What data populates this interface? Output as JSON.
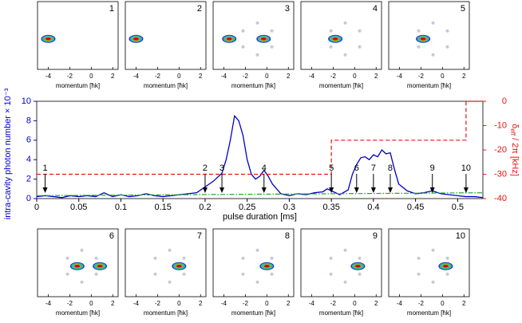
{
  "chart_data": {
    "type": "line",
    "xlabel": "pulse duration [ms]",
    "ylabel": "intra-cavity photon number  × 10⁻³",
    "y2label_symbol": "δ",
    "y2label_sub": "eff",
    "y2label_rest": " / 2π [kHz]",
    "xlim": [
      0,
      0.53
    ],
    "xticks": [
      0,
      0.05,
      0.1,
      0.15,
      0.2,
      0.25,
      0.3,
      0.35,
      0.4,
      0.45,
      0.5
    ],
    "ylim": [
      0,
      10
    ],
    "yticks": [
      0,
      2,
      4,
      6,
      8,
      10
    ],
    "y2lim": [
      -40,
      0
    ],
    "y2ticks": [
      0,
      -10,
      -20,
      -30,
      -40
    ],
    "series": [
      {
        "color": "#0000cc",
        "style": "solid",
        "x": [
          0,
          0.01,
          0.02,
          0.03,
          0.04,
          0.05,
          0.06,
          0.07,
          0.08,
          0.09,
          0.1,
          0.11,
          0.12,
          0.13,
          0.14,
          0.15,
          0.16,
          0.17,
          0.18,
          0.19,
          0.2,
          0.21,
          0.22,
          0.225,
          0.23,
          0.235,
          0.24,
          0.245,
          0.25,
          0.255,
          0.26,
          0.265,
          0.27,
          0.275,
          0.28,
          0.29,
          0.3,
          0.31,
          0.32,
          0.33,
          0.34,
          0.345,
          0.35,
          0.36,
          0.37,
          0.375,
          0.38,
          0.385,
          0.39,
          0.395,
          0.4,
          0.405,
          0.41,
          0.415,
          0.42,
          0.425,
          0.43,
          0.44,
          0.45,
          0.46,
          0.47,
          0.48,
          0.49,
          0.5,
          0.51,
          0.52,
          0.53
        ],
        "values": [
          0.2,
          0.3,
          0.2,
          0.1,
          0.3,
          0.2,
          0.3,
          0.2,
          0.6,
          0.2,
          0.4,
          0.2,
          0.3,
          0.5,
          0.3,
          0.2,
          0.3,
          0.4,
          0.5,
          0.6,
          1.2,
          1.8,
          2.6,
          4,
          6,
          8.5,
          8,
          6.5,
          4,
          2.5,
          2.0,
          2.3,
          2.9,
          2.3,
          1.5,
          0.5,
          0.3,
          0.5,
          0.4,
          0.6,
          0.7,
          1.0,
          0.8,
          0.4,
          0.9,
          2.5,
          3.5,
          4.2,
          4.3,
          4.0,
          4.5,
          4.3,
          5,
          4.6,
          4.7,
          3,
          1.5,
          0.8,
          0.5,
          0.6,
          0.8,
          0.5,
          0.4,
          0.3,
          0.2,
          0.2,
          0.1
        ]
      },
      {
        "color": "#22aa22",
        "style": "dashdot",
        "x": [
          0,
          0.53
        ],
        "values": [
          0.3,
          0.6
        ]
      },
      {
        "color": "#ee1111",
        "style": "dashed",
        "axis": "y2",
        "x": [
          0,
          0.35,
          0.35,
          0.51,
          0.51,
          0.53
        ],
        "values": [
          -30,
          -30,
          -16,
          -16,
          0,
          0
        ]
      }
    ],
    "annotations": [
      {
        "text": "1",
        "x": 0.01
      },
      {
        "text": "2",
        "x": 0.2
      },
      {
        "text": "3",
        "x": 0.22
      },
      {
        "text": "4",
        "x": 0.27
      },
      {
        "text": "5",
        "x": 0.35
      },
      {
        "text": "6",
        "x": 0.38
      },
      {
        "text": "7",
        "x": 0.4
      },
      {
        "text": "8",
        "x": 0.42
      },
      {
        "text": "9",
        "x": 0.47
      },
      {
        "text": "10",
        "x": 0.51
      }
    ]
  },
  "image_panels": {
    "xlabel": "momentum [ħk]",
    "xlim": [
      -5,
      2.5
    ],
    "xticks": [
      -4,
      -2,
      0,
      2
    ],
    "panels": [
      {
        "label": "1",
        "peaks": [
          -4
        ]
      },
      {
        "label": "2",
        "peaks": [
          -4
        ]
      },
      {
        "label": "3",
        "peaks": [
          -3.5,
          -0.3
        ]
      },
      {
        "label": "4",
        "peaks": [
          -1.8
        ]
      },
      {
        "label": "5",
        "peaks": [
          -1.8
        ]
      },
      {
        "label": "6",
        "peaks": [
          -1.3,
          0.8
        ]
      },
      {
        "label": "7",
        "peaks": [
          0
        ]
      },
      {
        "label": "8",
        "peaks": [
          0
        ]
      },
      {
        "label": "9",
        "peaks": [
          0.3
        ]
      },
      {
        "label": "10",
        "peaks": [
          0.3
        ]
      }
    ]
  }
}
